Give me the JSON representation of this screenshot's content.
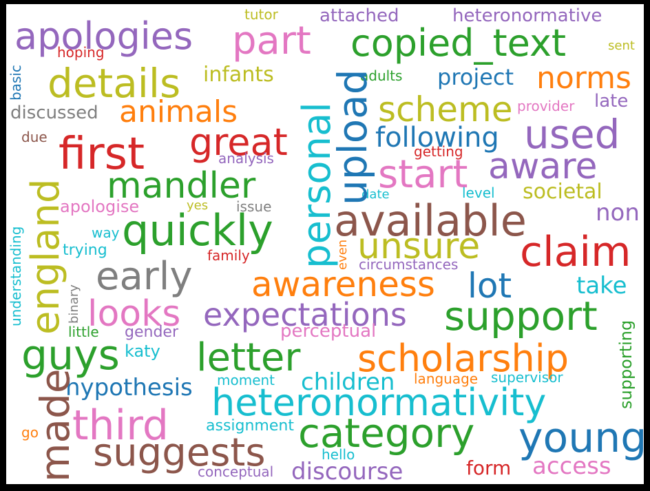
{
  "palette": {
    "blue": "#1f77b4",
    "orange": "#ff7f0e",
    "green": "#2ca02c",
    "red": "#d62728",
    "purple": "#9467bd",
    "brown": "#8c564b",
    "pink": "#e377c2",
    "gray": "#7f7f7f",
    "olive": "#bcbd22",
    "cyan": "#17becf"
  },
  "words": [
    {
      "text": "apologies",
      "color": "purple"
    },
    {
      "text": "part",
      "color": "pink"
    },
    {
      "text": "copied_text",
      "color": "green"
    },
    {
      "text": "attached",
      "color": "purple"
    },
    {
      "text": "heteronormative",
      "color": "purple"
    },
    {
      "text": "tutor",
      "color": "olive"
    },
    {
      "text": "hoping",
      "color": "red"
    },
    {
      "text": "sent",
      "color": "olive"
    },
    {
      "text": "details",
      "color": "olive"
    },
    {
      "text": "infants",
      "color": "olive"
    },
    {
      "text": "adults",
      "color": "green"
    },
    {
      "text": "project",
      "color": "blue"
    },
    {
      "text": "norms",
      "color": "orange"
    },
    {
      "text": "basic",
      "color": "blue"
    },
    {
      "text": "upload",
      "color": "blue"
    },
    {
      "text": "scheme",
      "color": "olive"
    },
    {
      "text": "provider",
      "color": "pink"
    },
    {
      "text": "late",
      "color": "purple"
    },
    {
      "text": "discussed",
      "color": "gray"
    },
    {
      "text": "animals",
      "color": "orange"
    },
    {
      "text": "personal",
      "color": "cyan"
    },
    {
      "text": "used",
      "color": "purple"
    },
    {
      "text": "due",
      "color": "brown"
    },
    {
      "text": "first",
      "color": "red"
    },
    {
      "text": "great",
      "color": "red"
    },
    {
      "text": "following",
      "color": "blue"
    },
    {
      "text": "getting",
      "color": "red"
    },
    {
      "text": "analysis",
      "color": "purple"
    },
    {
      "text": "start",
      "color": "pink"
    },
    {
      "text": "aware",
      "color": "purple"
    },
    {
      "text": "england",
      "color": "olive"
    },
    {
      "text": "mandler",
      "color": "green"
    },
    {
      "text": "societal",
      "color": "olive"
    },
    {
      "text": "level",
      "color": "cyan"
    },
    {
      "text": "date",
      "color": "cyan"
    },
    {
      "text": "apologise",
      "color": "pink"
    },
    {
      "text": "yes",
      "color": "olive"
    },
    {
      "text": "issue",
      "color": "gray"
    },
    {
      "text": "available",
      "color": "brown"
    },
    {
      "text": "non",
      "color": "purple"
    },
    {
      "text": "quickly",
      "color": "green"
    },
    {
      "text": "way",
      "color": "cyan"
    },
    {
      "text": "understanding",
      "color": "cyan"
    },
    {
      "text": "unsure",
      "color": "olive"
    },
    {
      "text": "claim",
      "color": "red"
    },
    {
      "text": "trying",
      "color": "cyan"
    },
    {
      "text": "family",
      "color": "red"
    },
    {
      "text": "even",
      "color": "orange"
    },
    {
      "text": "circumstances",
      "color": "purple"
    },
    {
      "text": "early",
      "color": "gray"
    },
    {
      "text": "awareness",
      "color": "orange"
    },
    {
      "text": "lot",
      "color": "blue"
    },
    {
      "text": "take",
      "color": "cyan"
    },
    {
      "text": "binary",
      "color": "gray"
    },
    {
      "text": "looks",
      "color": "pink"
    },
    {
      "text": "expectations",
      "color": "purple"
    },
    {
      "text": "support",
      "color": "green"
    },
    {
      "text": "supporting",
      "color": "green"
    },
    {
      "text": "little",
      "color": "green"
    },
    {
      "text": "gender",
      "color": "purple"
    },
    {
      "text": "perceptual",
      "color": "pink"
    },
    {
      "text": "guys",
      "color": "green"
    },
    {
      "text": "katy",
      "color": "cyan"
    },
    {
      "text": "letter",
      "color": "green"
    },
    {
      "text": "scholarship",
      "color": "orange"
    },
    {
      "text": "made",
      "color": "brown"
    },
    {
      "text": "hypothesis",
      "color": "blue"
    },
    {
      "text": "children",
      "color": "cyan"
    },
    {
      "text": "language",
      "color": "orange"
    },
    {
      "text": "supervisor",
      "color": "cyan"
    },
    {
      "text": "moment",
      "color": "cyan"
    },
    {
      "text": "heteronormativity",
      "color": "cyan"
    },
    {
      "text": "third",
      "color": "pink"
    },
    {
      "text": "assignment",
      "color": "cyan"
    },
    {
      "text": "category",
      "color": "green"
    },
    {
      "text": "young",
      "color": "blue"
    },
    {
      "text": "go",
      "color": "orange"
    },
    {
      "text": "suggests",
      "color": "brown"
    },
    {
      "text": "hello",
      "color": "cyan"
    },
    {
      "text": "form",
      "color": "red"
    },
    {
      "text": "access",
      "color": "pink"
    },
    {
      "text": "conceptual",
      "color": "purple"
    },
    {
      "text": "discourse",
      "color": "purple"
    }
  ]
}
